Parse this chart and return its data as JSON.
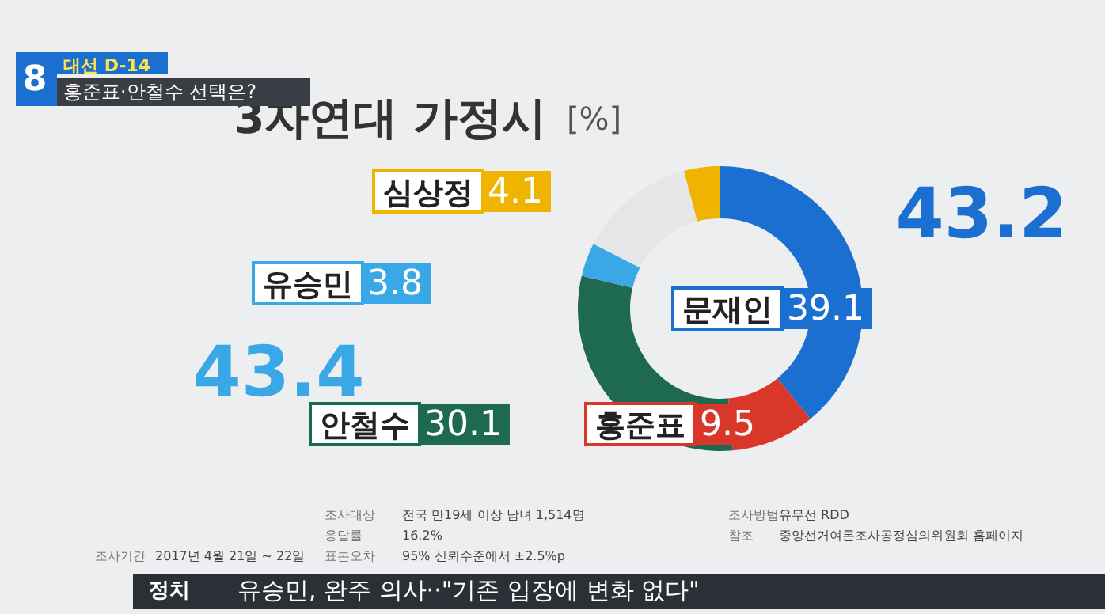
{
  "chart_data": {
    "type": "donut",
    "title": "3자연대 가정시",
    "subtitle": "[%]",
    "categories": [
      "문재인",
      "홍준표",
      "안철수",
      "유승민",
      null,
      "심상정"
    ],
    "values": [
      39.1,
      9.5,
      30.1,
      3.8,
      13.4,
      4.1
    ],
    "colors": [
      "#1a6fd0",
      "#d8372a",
      "#1d6a50",
      "#3aa8e6",
      "#e4e6e8",
      "#efb300"
    ],
    "value_labels": [
      "39.1",
      "9.5",
      "30.1",
      "3.8",
      null,
      "4.1"
    ],
    "legend": "left",
    "annotations": [
      "43.2",
      "43.4",
      "8",
      "대선 D-14",
      "홍준표·안철수 선택은?",
      "조사대상",
      "전국 만19세 이상 남녀 1,514명",
      "응답률",
      "16.2%",
      "조사기간",
      "2017년 4월 21일 ~ 22일",
      "표본오차",
      "95% 신뢰수준에서 ±2.5%p",
      "조사방법",
      "유무선 RDD",
      "참조",
      "중앙선거여론조사공정심의위원회 홈페이지",
      "정치",
      "유승민, 완주 의사··\"기존 입장에 변화 없다\""
    ]
  }
}
